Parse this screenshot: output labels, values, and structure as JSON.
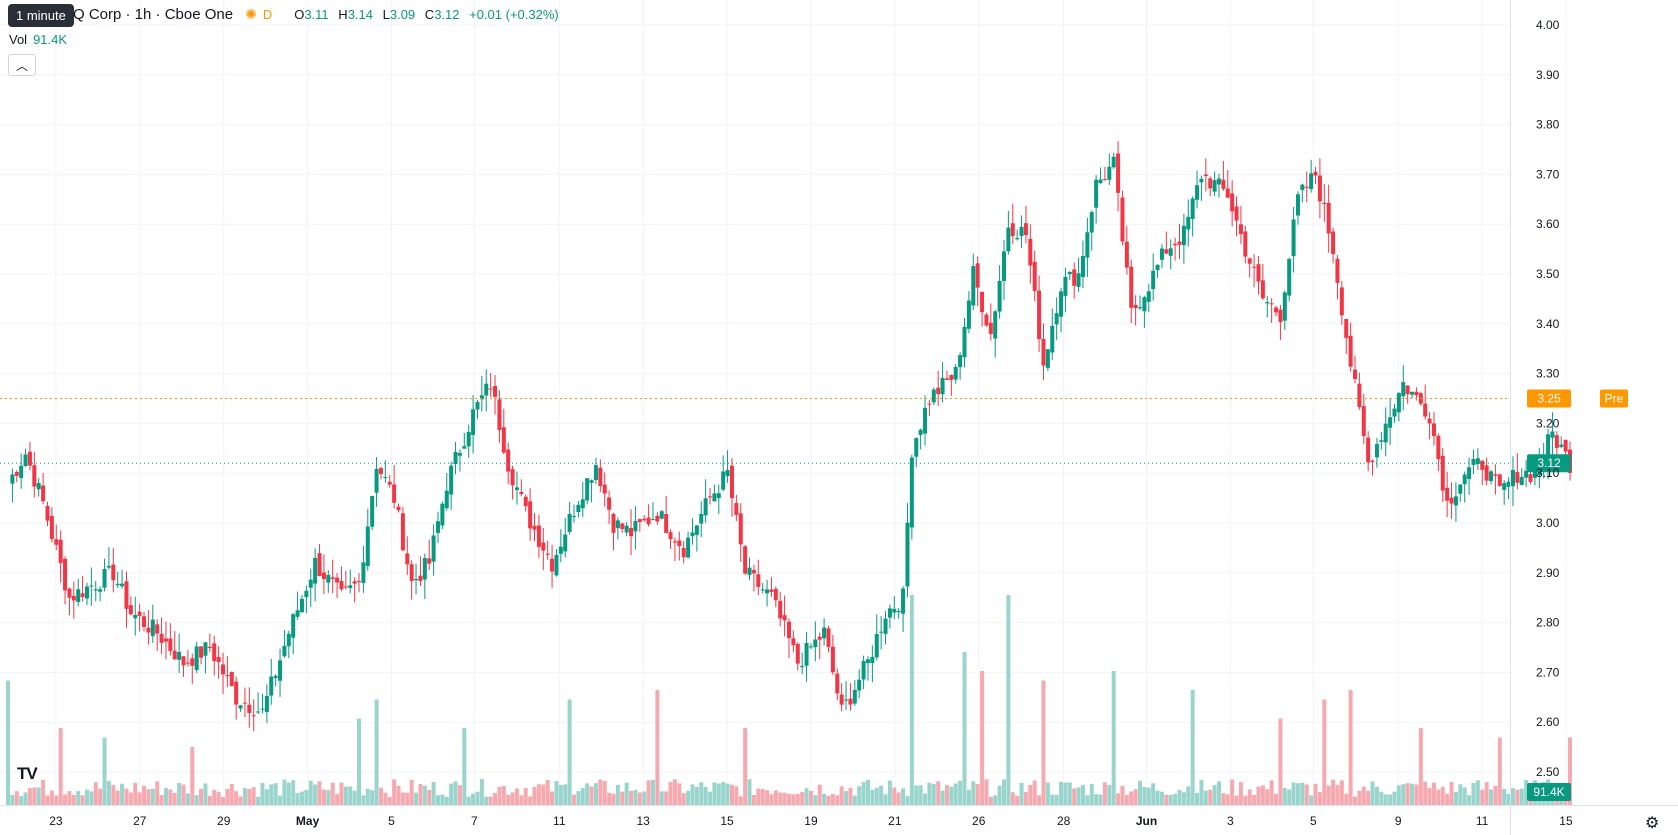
{
  "tooltip": "1 minute",
  "legend": {
    "title": "Q Corp · 1h · Cboe One",
    "session_icon": "sun-icon",
    "session_tag": "D",
    "open_key": "O",
    "open": "3.11",
    "high_key": "H",
    "high": "3.14",
    "low_key": "L",
    "low": "3.09",
    "close_key": "C",
    "close": "3.12",
    "change": "+0.01 (+0.32%)"
  },
  "volume": {
    "label": "Vol",
    "value": "91.4K"
  },
  "collapse_icon": "chevron-up-icon",
  "logo": "TV",
  "settings_icon": "gear-icon",
  "colors": {
    "up": "#089981",
    "down": "#f23645",
    "pre": "#ff9800",
    "up_vol": "#9ad5cd",
    "down_vol": "#f7a9b0"
  },
  "chart_data": {
    "type": "candlestick",
    "interval": "1h",
    "ylim": [
      2.5,
      4.0
    ],
    "y_ticks": [
      "4.00",
      "3.90",
      "3.80",
      "3.70",
      "3.60",
      "3.50",
      "3.40",
      "3.30",
      "3.20",
      "3.10",
      "3.00",
      "2.90",
      "2.80",
      "2.70",
      "2.60",
      "2.50"
    ],
    "x_ticks": [
      "23",
      "27",
      "29",
      "May",
      "5",
      "7",
      "11",
      "13",
      "15",
      "19",
      "21",
      "26",
      "28",
      "Jun",
      "3",
      "5",
      "9",
      "11",
      "15"
    ],
    "pre_label": "Pre",
    "pre_price": "3.25",
    "last_price": "3.12",
    "volume_label": "91.4K",
    "grid": true,
    "waypoints": [
      [
        0,
        3.08
      ],
      [
        4,
        3.14
      ],
      [
        8,
        3.04
      ],
      [
        14,
        2.85
      ],
      [
        20,
        2.88
      ],
      [
        24,
        2.9
      ],
      [
        28,
        2.82
      ],
      [
        34,
        2.78
      ],
      [
        40,
        2.72
      ],
      [
        46,
        2.75
      ],
      [
        52,
        2.65
      ],
      [
        58,
        2.62
      ],
      [
        64,
        2.78
      ],
      [
        70,
        2.92
      ],
      [
        76,
        2.85
      ],
      [
        80,
        2.88
      ],
      [
        84,
        3.12
      ],
      [
        88,
        3.05
      ],
      [
        92,
        2.88
      ],
      [
        96,
        2.92
      ],
      [
        100,
        3.08
      ],
      [
        106,
        3.22
      ],
      [
        110,
        3.28
      ],
      [
        114,
        3.12
      ],
      [
        118,
        3.02
      ],
      [
        124,
        2.92
      ],
      [
        130,
        3.05
      ],
      [
        134,
        3.12
      ],
      [
        138,
        3.0
      ],
      [
        142,
        2.98
      ],
      [
        148,
        3.02
      ],
      [
        154,
        2.95
      ],
      [
        160,
        3.05
      ],
      [
        164,
        3.1
      ],
      [
        168,
        2.9
      ],
      [
        174,
        2.85
      ],
      [
        180,
        2.72
      ],
      [
        186,
        2.78
      ],
      [
        190,
        2.62
      ],
      [
        196,
        2.72
      ],
      [
        200,
        2.82
      ],
      [
        204,
        2.85
      ],
      [
        206,
        3.15
      ],
      [
        210,
        3.25
      ],
      [
        216,
        3.3
      ],
      [
        220,
        3.5
      ],
      [
        224,
        3.38
      ],
      [
        228,
        3.6
      ],
      [
        232,
        3.58
      ],
      [
        236,
        3.32
      ],
      [
        240,
        3.48
      ],
      [
        244,
        3.5
      ],
      [
        248,
        3.68
      ],
      [
        252,
        3.72
      ],
      [
        256,
        3.42
      ],
      [
        260,
        3.48
      ],
      [
        264,
        3.55
      ],
      [
        268,
        3.58
      ],
      [
        272,
        3.7
      ],
      [
        278,
        3.66
      ],
      [
        282,
        3.55
      ],
      [
        286,
        3.45
      ],
      [
        290,
        3.42
      ],
      [
        294,
        3.65
      ],
      [
        298,
        3.7
      ],
      [
        302,
        3.55
      ],
      [
        306,
        3.32
      ],
      [
        310,
        3.12
      ],
      [
        314,
        3.2
      ],
      [
        318,
        3.28
      ],
      [
        324,
        3.22
      ],
      [
        328,
        3.04
      ],
      [
        332,
        3.1
      ],
      [
        336,
        3.12
      ],
      [
        340,
        3.06
      ],
      [
        344,
        3.1
      ],
      [
        348,
        3.1
      ],
      [
        352,
        3.18
      ],
      [
        356,
        3.12
      ]
    ],
    "volume_spikes": [
      [
        0,
        0.55
      ],
      [
        12,
        0.3
      ],
      [
        22,
        0.25
      ],
      [
        42,
        0.2
      ],
      [
        80,
        0.35
      ],
      [
        84,
        0.45
      ],
      [
        104,
        0.3
      ],
      [
        128,
        0.45
      ],
      [
        148,
        0.5
      ],
      [
        168,
        0.3
      ],
      [
        206,
        1.0
      ],
      [
        218,
        0.7
      ],
      [
        222,
        0.6
      ],
      [
        228,
        1.0
      ],
      [
        236,
        0.55
      ],
      [
        252,
        0.6
      ],
      [
        270,
        0.5
      ],
      [
        290,
        0.35
      ],
      [
        300,
        0.45
      ],
      [
        306,
        0.5
      ],
      [
        322,
        0.3
      ],
      [
        340,
        0.25
      ],
      [
        356,
        0.25
      ]
    ]
  }
}
